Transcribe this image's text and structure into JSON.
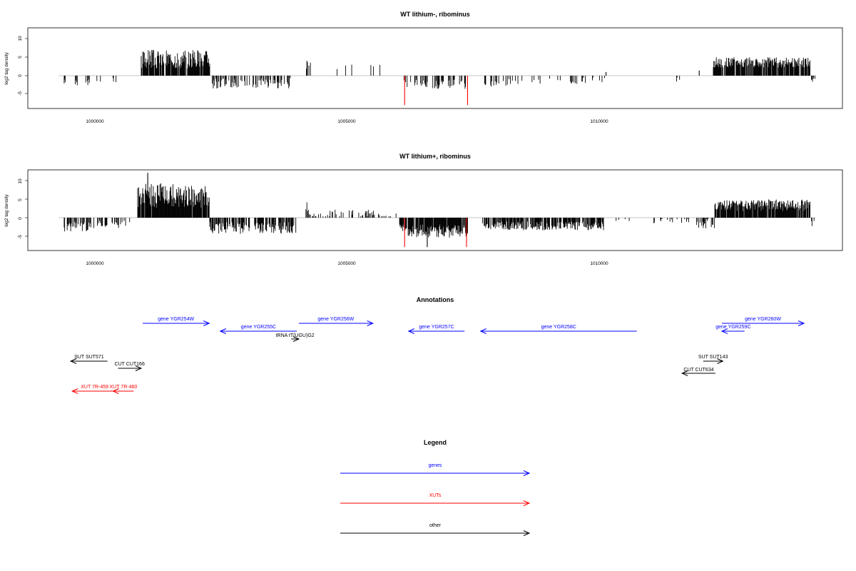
{
  "panels": [
    {
      "title": "WT lithium-, ribominus",
      "ylabel": "log2 tag density",
      "yticks": [
        "10",
        "5",
        "0",
        "-5"
      ],
      "xticks": [
        "1000000",
        "1005000",
        "1010000"
      ]
    },
    {
      "title": "WT lithium+, ribominus",
      "ylabel": "log2 tag density",
      "yticks": [
        "10",
        "5",
        "0",
        "-5"
      ],
      "xticks": [
        "1000000",
        "1005000",
        "1010000"
      ]
    }
  ],
  "annotations": {
    "title": "Annotations",
    "features": [
      {
        "label": "gene YGR254W",
        "start": 1000950,
        "end": 1002270,
        "strand": "+",
        "row": 0,
        "class": "gene"
      },
      {
        "label": "gene YGR255C",
        "start": 1002490,
        "end": 1004010,
        "strand": "-",
        "row": 1,
        "class": "gene"
      },
      {
        "label": "tRNA tT(UGU)G2",
        "start": 1003900,
        "end": 1004050,
        "strand": "+",
        "row": 2,
        "class": "other"
      },
      {
        "label": "gene YGR256W",
        "start": 1004050,
        "end": 1005520,
        "strand": "+",
        "row": 0,
        "class": "gene"
      },
      {
        "label": "gene YGR257C",
        "start": 1006230,
        "end": 1007340,
        "strand": "-",
        "row": 1,
        "class": "gene"
      },
      {
        "label": "gene YGR258C",
        "start": 1007660,
        "end": 1010760,
        "strand": "-",
        "row": 1,
        "class": "gene"
      },
      {
        "label": "gene YGR259C",
        "start": 1012450,
        "end": 1012900,
        "strand": "-",
        "row": 1,
        "class": "gene"
      },
      {
        "label": "gene YGR260W",
        "start": 1012450,
        "end": 1014080,
        "strand": "+",
        "row": 0,
        "class": "gene"
      },
      {
        "label": "SUT SUT571",
        "start": 999520,
        "end": 1000250,
        "strand": "-",
        "row": 3,
        "class": "other"
      },
      {
        "label": "CUT CUT166",
        "start": 1000460,
        "end": 1000920,
        "strand": "+",
        "row": 4,
        "class": "other"
      },
      {
        "label": "SUT SUT143",
        "start": 1012080,
        "end": 1012470,
        "strand": "+",
        "row": 3,
        "class": "other"
      },
      {
        "label": "CUT CUT634",
        "start": 1011660,
        "end": 1012320,
        "strand": "-",
        "row": 5,
        "class": "other"
      },
      {
        "label": "XUT 7R-459",
        "start": 999550,
        "end": 1000440,
        "strand": "-",
        "row": 6,
        "class": "xut"
      },
      {
        "label": "XUT 7R-460",
        "start": 1000360,
        "end": 1000770,
        "strand": "-",
        "row": 6,
        "class": "xut"
      }
    ]
  },
  "legend": {
    "title": "Legend",
    "items": [
      {
        "label": "genes",
        "class": "gene"
      },
      {
        "label": "XUTs",
        "class": "xut"
      },
      {
        "label": "other",
        "class": "other"
      }
    ]
  },
  "colors": {
    "gene": "#0000ff",
    "xut": "#ff0000",
    "other": "#000000",
    "highlight": "#ff0000",
    "signal": "#000000",
    "baseline": "#b3b3b3"
  },
  "chart_data": [
    {
      "type": "bar",
      "title": "WT lithium-, ribominus",
      "xlabel": "",
      "ylabel": "log2 tag density",
      "xlim": [
        999250,
        1014900
      ],
      "ylim": [
        -8.5,
        13
      ],
      "xticks": [
        1000000,
        1005000,
        1010000
      ],
      "yticks": [
        -5,
        0,
        5,
        10
      ],
      "segments": [
        {
          "start": 999380,
          "end": 999440,
          "mean": -1.5,
          "amp": 0.8,
          "density": 0.3,
          "seed": 11
        },
        {
          "start": 999600,
          "end": 999900,
          "mean": -2.0,
          "amp": 1.0,
          "density": 0.35,
          "seed": 12
        },
        {
          "start": 999980,
          "end": 1000500,
          "mean": -1.3,
          "amp": 0.9,
          "density": 0.08,
          "seed": 13
        },
        {
          "start": 1000920,
          "end": 1002280,
          "mean": 4.4,
          "amp": 2.6,
          "density": 0.88,
          "seed": 14
        },
        {
          "start": 1002330,
          "end": 1003900,
          "mean": -2.1,
          "amp": 1.4,
          "density": 0.45,
          "seed": 15
        },
        {
          "start": 1004200,
          "end": 1004280,
          "mean": 2.6,
          "amp": 1.6,
          "density": 0.6,
          "seed": 16
        },
        {
          "start": 1004800,
          "end": 1005700,
          "mean": 2.0,
          "amp": 1.0,
          "density": 0.08,
          "seed": 17
        },
        {
          "start": 1006100,
          "end": 1007400,
          "mean": -2.3,
          "amp": 1.3,
          "density": 0.35,
          "seed": 18
        },
        {
          "start": 1007700,
          "end": 1008200,
          "mean": -2.0,
          "amp": 1.0,
          "density": 0.3,
          "seed": 19
        },
        {
          "start": 1008200,
          "end": 1010200,
          "mean": -1.4,
          "amp": 0.9,
          "density": 0.12,
          "seed": 20
        },
        {
          "start": 1011550,
          "end": 1011640,
          "mean": -1.0,
          "amp": 1.2,
          "density": 0.3,
          "seed": 21
        },
        {
          "start": 1012280,
          "end": 1014200,
          "mean": 3.6,
          "amp": 1.4,
          "density": 0.82,
          "seed": 22
        },
        {
          "start": 1014200,
          "end": 1014300,
          "mean": -1.2,
          "amp": 0.6,
          "density": 0.6,
          "seed": 23
        }
      ],
      "peaks": [
        {
          "x": 1006150,
          "y": -8,
          "highlight": true
        },
        {
          "x": 1007400,
          "y": -8,
          "highlight": true
        },
        {
          "x": 1012000,
          "y": 1.4,
          "highlight": false
        },
        {
          "x": 1010150,
          "y": 1.0,
          "highlight": false
        }
      ]
    },
    {
      "type": "bar",
      "title": "WT lithium+, ribominus",
      "xlabel": "",
      "ylabel": "log2 tag density",
      "xlim": [
        999250,
        1014900
      ],
      "ylim": [
        -8.5,
        13
      ],
      "xticks": [
        1000000,
        1005000,
        1010000
      ],
      "yticks": [
        -5,
        0,
        5,
        10
      ],
      "segments": [
        {
          "start": 999380,
          "end": 999900,
          "mean": -2.4,
          "amp": 1.4,
          "density": 0.55,
          "seed": 31
        },
        {
          "start": 999900,
          "end": 1000700,
          "mean": -1.8,
          "amp": 1.0,
          "density": 0.3,
          "seed": 32
        },
        {
          "start": 1000850,
          "end": 1002280,
          "mean": 6.0,
          "amp": 3.4,
          "density": 0.95,
          "seed": 33
        },
        {
          "start": 1002280,
          "end": 1004000,
          "mean": -2.8,
          "amp": 1.6,
          "density": 0.6,
          "seed": 34
        },
        {
          "start": 1004180,
          "end": 1004250,
          "mean": 3.0,
          "amp": 1.5,
          "density": 0.7,
          "seed": 35
        },
        {
          "start": 1004250,
          "end": 1006000,
          "mean": 1.0,
          "amp": 1.3,
          "density": 0.35,
          "seed": 36
        },
        {
          "start": 1006050,
          "end": 1007400,
          "mean": -3.6,
          "amp": 1.8,
          "density": 0.9,
          "seed": 37
        },
        {
          "start": 1007700,
          "end": 1010100,
          "mean": -2.2,
          "amp": 1.2,
          "density": 0.75,
          "seed": 38
        },
        {
          "start": 1010300,
          "end": 1011900,
          "mean": -0.8,
          "amp": 0.8,
          "density": 0.08,
          "seed": 39
        },
        {
          "start": 1011950,
          "end": 1012300,
          "mean": -1.6,
          "amp": 1.4,
          "density": 0.35,
          "seed": 40
        },
        {
          "start": 1012300,
          "end": 1014200,
          "mean": 3.4,
          "amp": 1.6,
          "density": 0.88,
          "seed": 41
        },
        {
          "start": 1014200,
          "end": 1014300,
          "mean": -1.4,
          "amp": 1.0,
          "density": 0.7,
          "seed": 42
        }
      ],
      "peaks": [
        {
          "x": 1006150,
          "y": -8,
          "highlight": true
        },
        {
          "x": 1007380,
          "y": -8,
          "highlight": true
        },
        {
          "x": 1006600,
          "y": -8,
          "highlight": false
        },
        {
          "x": 1001050,
          "y": 12.2,
          "highlight": false
        }
      ]
    }
  ]
}
